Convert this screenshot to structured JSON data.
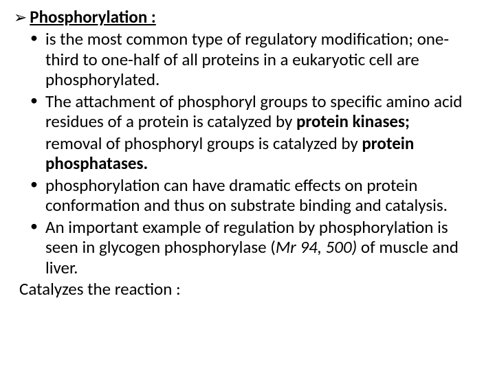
{
  "colors": {
    "background": "#ffffff",
    "text": "#000000"
  },
  "typography": {
    "body_fontsize_pt": 19,
    "heading_fontsize_pt": 19,
    "font_family": "Calibri"
  },
  "heading": {
    "arrow_glyph": "➢",
    "text": "Phosphorylation  :"
  },
  "bullets": [
    {
      "pre": " is the most common type of regulatory modification; one-third to one-half of all proteins in a eukaryotic cell are phosphorylated."
    },
    {
      "pre": "The attachment of phosphoryl groups to specific amino acid residues of a protein is catalyzed by ",
      "bold1": "protein kinases;",
      "continuation_pre": "removal of phosphoryl groups is catalyzed by ",
      "continuation_bold": "protein phosphatases."
    },
    {
      "pre": "phosphorylation can have dramatic effects on protein conformation and thus on substrate binding and catalysis."
    },
    {
      "pre": "An important example of regulation by phosphorylation is seen in glycogen phosphorylase (",
      "italic1": "Mr 94, 500) ",
      "post": "of muscle and liver."
    }
  ],
  "closing": "Catalyzes the reaction :"
}
